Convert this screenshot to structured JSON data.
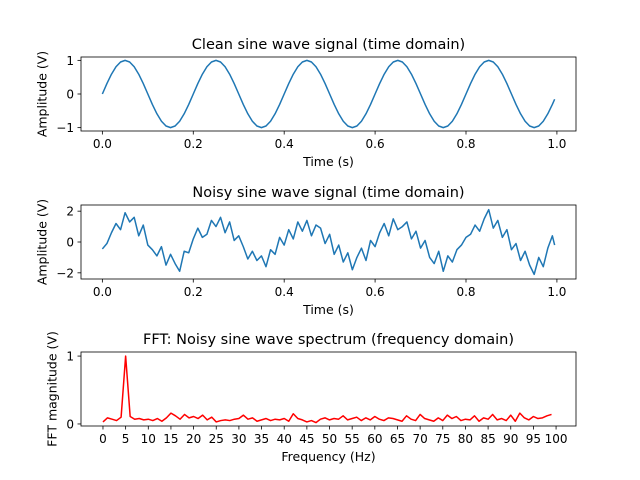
{
  "chart_data": [
    {
      "type": "line",
      "title": "Clean sine wave signal (time domain)",
      "xlabel": "Time (s)",
      "ylabel": "Amplitude (V)",
      "color": "#1f77b4",
      "x": [
        0,
        0.01,
        0.02,
        0.03,
        0.04,
        0.05,
        0.06,
        0.07,
        0.08,
        0.09,
        0.1,
        0.11,
        0.12,
        0.13,
        0.14,
        0.15,
        0.16,
        0.17,
        0.18,
        0.19,
        0.2,
        0.21,
        0.22,
        0.23,
        0.24,
        0.25,
        0.26,
        0.27,
        0.28,
        0.29,
        0.3,
        0.31,
        0.32,
        0.33,
        0.34,
        0.35,
        0.36,
        0.37,
        0.38,
        0.39,
        0.4,
        0.41,
        0.42,
        0.43,
        0.44,
        0.45,
        0.46,
        0.47,
        0.48,
        0.49,
        0.5,
        0.51,
        0.52,
        0.53,
        0.54,
        0.55,
        0.56,
        0.57,
        0.58,
        0.59,
        0.6,
        0.61,
        0.62,
        0.63,
        0.64,
        0.65,
        0.66,
        0.67,
        0.68,
        0.69,
        0.7,
        0.71,
        0.72,
        0.73,
        0.74,
        0.75,
        0.76,
        0.77,
        0.78,
        0.79,
        0.8,
        0.81,
        0.82,
        0.83,
        0.84,
        0.85,
        0.86,
        0.87,
        0.88,
        0.89,
        0.9,
        0.91,
        0.92,
        0.93,
        0.94,
        0.95,
        0.96,
        0.97,
        0.98,
        0.99,
        0.995
      ],
      "values": [
        0,
        0.309,
        0.588,
        0.809,
        0.951,
        1,
        0.951,
        0.809,
        0.588,
        0.309,
        0,
        -0.309,
        -0.588,
        -0.809,
        -0.951,
        -1,
        -0.951,
        -0.809,
        -0.588,
        -0.309,
        0,
        0.309,
        0.588,
        0.809,
        0.951,
        1,
        0.951,
        0.809,
        0.588,
        0.309,
        0,
        -0.309,
        -0.588,
        -0.809,
        -0.951,
        -1,
        -0.951,
        -0.809,
        -0.588,
        -0.309,
        0,
        0.309,
        0.588,
        0.809,
        0.951,
        1,
        0.951,
        0.809,
        0.588,
        0.309,
        0,
        -0.309,
        -0.588,
        -0.809,
        -0.951,
        -1,
        -0.951,
        -0.809,
        -0.588,
        -0.309,
        0,
        0.309,
        0.588,
        0.809,
        0.951,
        1,
        0.951,
        0.809,
        0.588,
        0.309,
        0,
        -0.309,
        -0.588,
        -0.809,
        -0.951,
        -1,
        -0.951,
        -0.809,
        -0.588,
        -0.309,
        0,
        0.309,
        0.588,
        0.809,
        0.951,
        1,
        0.951,
        0.809,
        0.588,
        0.309,
        0,
        -0.309,
        -0.588,
        -0.809,
        -0.951,
        -1,
        -0.951,
        -0.809,
        -0.588,
        -0.309,
        -0.156
      ],
      "xlim": [
        -0.047,
        1.042
      ],
      "ylim": [
        -1.1,
        1.1
      ],
      "xticks": [
        {
          "value": 0,
          "label": "0.0"
        },
        0.2,
        0.4,
        0.6,
        0.8,
        {
          "value": 1,
          "label": "1.0"
        }
      ],
      "yticks": [
        {
          "value": -1,
          "label": "−1"
        },
        0,
        1
      ]
    },
    {
      "type": "line",
      "title": "Noisy sine wave signal (time domain)",
      "xlabel": "Time (s)",
      "ylabel": "Amplitude (V)",
      "color": "#1f77b4",
      "x": [
        0,
        0.01,
        0.02,
        0.03,
        0.04,
        0.05,
        0.06,
        0.07,
        0.08,
        0.09,
        0.1,
        0.11,
        0.12,
        0.13,
        0.14,
        0.15,
        0.16,
        0.17,
        0.18,
        0.19,
        0.2,
        0.21,
        0.22,
        0.23,
        0.24,
        0.25,
        0.26,
        0.27,
        0.28,
        0.29,
        0.3,
        0.31,
        0.32,
        0.33,
        0.34,
        0.35,
        0.36,
        0.37,
        0.38,
        0.39,
        0.4,
        0.41,
        0.42,
        0.43,
        0.44,
        0.45,
        0.46,
        0.47,
        0.48,
        0.49,
        0.5,
        0.51,
        0.52,
        0.53,
        0.54,
        0.55,
        0.56,
        0.57,
        0.58,
        0.59,
        0.6,
        0.61,
        0.62,
        0.63,
        0.64,
        0.65,
        0.66,
        0.67,
        0.68,
        0.69,
        0.7,
        0.71,
        0.72,
        0.73,
        0.74,
        0.75,
        0.76,
        0.77,
        0.78,
        0.79,
        0.8,
        0.81,
        0.82,
        0.83,
        0.84,
        0.85,
        0.86,
        0.87,
        0.88,
        0.89,
        0.9,
        0.91,
        0.92,
        0.93,
        0.94,
        0.95,
        0.96,
        0.97,
        0.98,
        0.99,
        0.995
      ],
      "values": [
        -0.45,
        -0.1,
        0.6,
        1.2,
        0.8,
        1.9,
        1.3,
        1.6,
        0.4,
        1.1,
        -0.2,
        -0.5,
        -0.9,
        -0.3,
        -1.5,
        -0.8,
        -1.4,
        -1.9,
        -0.6,
        -0.7,
        0.2,
        0.9,
        0.3,
        0.5,
        1.4,
        1.0,
        1.6,
        0.6,
        1.3,
        0.1,
        0.4,
        -0.3,
        -1.1,
        -0.6,
        -1.2,
        -0.9,
        -1.6,
        -0.5,
        -0.8,
        0.3,
        -0.2,
        0.8,
        0.2,
        1.3,
        0.7,
        1.4,
        0.4,
        1.1,
        0.9,
        -0.1,
        0.5,
        -0.8,
        -0.2,
        -1.3,
        -0.7,
        -1.8,
        -1.0,
        -0.4,
        -1.2,
        0.1,
        -0.3,
        0.6,
        1.2,
        0.4,
        1.5,
        0.8,
        1.0,
        1.3,
        0.2,
        0.7,
        -0.4,
        0.1,
        -1.0,
        -1.4,
        -0.6,
        -1.9,
        -0.9,
        -1.3,
        -0.5,
        -0.2,
        0.3,
        0.5,
        1.1,
        0.7,
        1.5,
        2.1,
        0.9,
        1.4,
        0.3,
        0.8,
        -0.5,
        -0.1,
        -1.2,
        -0.6,
        -1.5,
        -2.1,
        -1.0,
        -1.6,
        -0.4,
        0.4,
        -0.2
      ],
      "xlim": [
        -0.047,
        1.042
      ],
      "ylim": [
        -2.4,
        2.4
      ],
      "xticks": [
        {
          "value": 0,
          "label": "0.0"
        },
        0.2,
        0.4,
        0.6,
        0.8,
        {
          "value": 1,
          "label": "1.0"
        }
      ],
      "yticks": [
        {
          "value": -2,
          "label": "−2"
        },
        0,
        2
      ]
    },
    {
      "type": "line",
      "title": "FFT: Noisy sine wave spectrum (frequency domain)",
      "xlabel": "Frequency (Hz)",
      "ylabel": "FFT magnitude (V)",
      "color": "#ff0000",
      "x": [
        0,
        1,
        2,
        3,
        4,
        5,
        6,
        7,
        8,
        9,
        10,
        11,
        12,
        13,
        14,
        15,
        16,
        17,
        18,
        19,
        20,
        21,
        22,
        23,
        24,
        25,
        26,
        27,
        28,
        29,
        30,
        31,
        32,
        33,
        34,
        35,
        36,
        37,
        38,
        39,
        40,
        41,
        42,
        43,
        44,
        45,
        46,
        47,
        48,
        49,
        50,
        51,
        52,
        53,
        54,
        55,
        56,
        57,
        58,
        59,
        60,
        61,
        62,
        63,
        64,
        65,
        66,
        67,
        68,
        69,
        70,
        71,
        72,
        73,
        74,
        75,
        76,
        77,
        78,
        79,
        80,
        81,
        82,
        83,
        84,
        85,
        86,
        87,
        88,
        89,
        90,
        91,
        92,
        93,
        94,
        95,
        96,
        97,
        98,
        99
      ],
      "values": [
        0.03,
        0.09,
        0.07,
        0.05,
        0.1,
        1.0,
        0.11,
        0.07,
        0.08,
        0.06,
        0.07,
        0.05,
        0.08,
        0.04,
        0.09,
        0.16,
        0.12,
        0.07,
        0.14,
        0.09,
        0.11,
        0.08,
        0.13,
        0.06,
        0.1,
        0.03,
        0.05,
        0.06,
        0.05,
        0.07,
        0.08,
        0.13,
        0.07,
        0.09,
        0.04,
        0.06,
        0.08,
        0.05,
        0.07,
        0.06,
        0.08,
        0.04,
        0.15,
        0.08,
        0.06,
        0.03,
        0.05,
        0.02,
        0.07,
        0.09,
        0.06,
        0.08,
        0.07,
        0.12,
        0.06,
        0.08,
        0.1,
        0.05,
        0.09,
        0.06,
        0.11,
        0.07,
        0.05,
        0.09,
        0.08,
        0.06,
        0.04,
        0.12,
        0.07,
        0.05,
        0.14,
        0.08,
        0.06,
        0.04,
        0.09,
        0.05,
        0.13,
        0.08,
        0.11,
        0.05,
        0.07,
        0.06,
        0.12,
        0.04,
        0.09,
        0.07,
        0.14,
        0.06,
        0.08,
        0.05,
        0.13,
        0.04,
        0.16,
        0.09,
        0.06,
        0.11,
        0.08,
        0.09,
        0.12,
        0.14
      ],
      "xlim": [
        -4.85,
        104.4
      ],
      "ylim": [
        -0.03,
        1.06
      ],
      "xticks": [
        0,
        5,
        10,
        15,
        20,
        25,
        30,
        35,
        40,
        45,
        50,
        55,
        60,
        65,
        70,
        75,
        80,
        85,
        90,
        95,
        100
      ],
      "yticks": [
        0,
        1
      ]
    }
  ]
}
